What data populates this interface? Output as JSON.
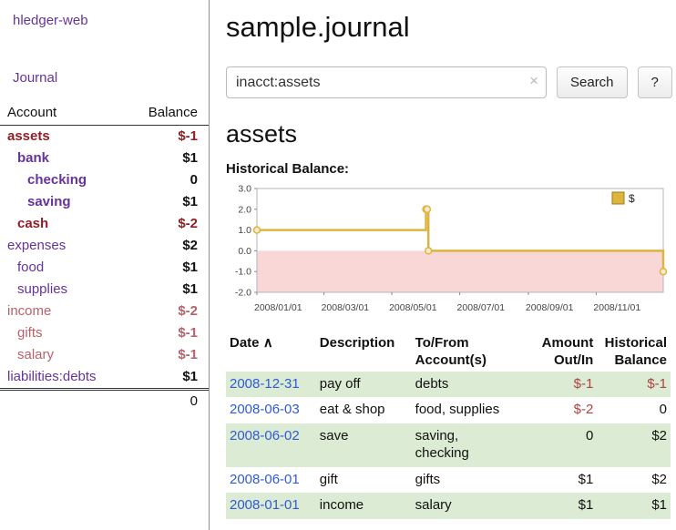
{
  "colors": {
    "purple": "#663399",
    "blue": "#2f5bd6",
    "neg-strong": "#8e1f26",
    "neg-soft": "#b5626b",
    "neg-table": "#a94442",
    "rowgreen": "#dcebd3",
    "gold": "#ddb440",
    "gold-dark": "#9a7d22",
    "marker-fill": "#f7ecc9",
    "pink": "#f9d7d7"
  },
  "sidebar": {
    "brand": "hledger-web",
    "nav_journal": "Journal",
    "col_account": "Account",
    "col_balance": "Balance",
    "accounts": [
      {
        "name": "assets",
        "depth": 0,
        "bold": true,
        "balance": "$-1"
      },
      {
        "name": "bank",
        "depth": 1,
        "bold": true,
        "balance": "$1"
      },
      {
        "name": "checking",
        "depth": 2,
        "bold": true,
        "balance": "0"
      },
      {
        "name": "saving",
        "depth": 2,
        "bold": true,
        "balance": "$1"
      },
      {
        "name": "cash",
        "depth": 1,
        "bold": true,
        "balance": "$-2"
      },
      {
        "name": "expenses",
        "depth": 0,
        "bold": false,
        "balance": "$2"
      },
      {
        "name": "food",
        "depth": 1,
        "bold": false,
        "balance": "$1"
      },
      {
        "name": "supplies",
        "depth": 1,
        "bold": false,
        "balance": "$1"
      },
      {
        "name": "income",
        "depth": 0,
        "bold": false,
        "balance": "$-2"
      },
      {
        "name": "gifts",
        "depth": 1,
        "bold": false,
        "balance": "$-1"
      },
      {
        "name": "salary",
        "depth": 1,
        "bold": false,
        "balance": "$-1"
      },
      {
        "name": "liabilities:debts",
        "depth": 0,
        "bold": false,
        "balance": "$1"
      }
    ],
    "total": "0"
  },
  "header": {
    "title": "sample.journal"
  },
  "search": {
    "value": "inacct:assets",
    "clear_icon": "×",
    "button": "Search",
    "help_button": "?"
  },
  "section": {
    "heading": "assets",
    "chart_label": "Historical Balance:"
  },
  "chart_data": {
    "type": "line",
    "step": true,
    "title": "Historical Balance",
    "legend": {
      "label": "$",
      "position": "top-right"
    },
    "grid": false,
    "ylim": [
      -2.0,
      3.0
    ],
    "yticks": [
      3.0,
      2.0,
      1.0,
      0.0,
      -1.0,
      -2.0
    ],
    "xticks": [
      {
        "pos": 0.0,
        "label": "2008/01/01"
      },
      {
        "pos": 0.165,
        "label": "2008/03/01"
      },
      {
        "pos": 0.332,
        "label": "2008/05/01"
      },
      {
        "pos": 0.499,
        "label": "2008/07/01"
      },
      {
        "pos": 0.668,
        "label": "2008/09/01"
      },
      {
        "pos": 0.835,
        "label": "2008/11/01"
      }
    ],
    "series": [
      {
        "name": "$",
        "points": [
          {
            "date": "2008-01-01",
            "x": 0.0,
            "y": 1.0
          },
          {
            "date": "2008-06-01",
            "x": 0.416,
            "y": 2.0
          },
          {
            "date": "2008-06-02",
            "x": 0.419,
            "y": 2.0
          },
          {
            "date": "2008-06-03",
            "x": 0.422,
            "y": 0.0
          },
          {
            "date": "2008-12-31",
            "x": 1.0,
            "y": -1.0
          }
        ]
      }
    ]
  },
  "journal": {
    "headers": {
      "date": "Date",
      "sort_icon": "∧",
      "description": "Description",
      "account_l1": "To/From",
      "account_l2": "Account(s)",
      "amount_l1": "Amount",
      "amount_l2": "Out/In",
      "balance_l1": "Historical",
      "balance_l2": "Balance"
    },
    "rows": [
      {
        "date": "2008-12-31",
        "description": "pay off",
        "accounts": "debts",
        "amount": "$-1",
        "balance": "$-1"
      },
      {
        "date": "2008-06-03",
        "description": "eat & shop",
        "accounts": "food, supplies",
        "amount": "$-2",
        "balance": "0"
      },
      {
        "date": "2008-06-02",
        "description": "save",
        "accounts": "saving, checking",
        "amount": "0",
        "balance": "$2"
      },
      {
        "date": "2008-06-01",
        "description": "gift",
        "accounts": "gifts",
        "amount": "$1",
        "balance": "$2"
      },
      {
        "date": "2008-01-01",
        "description": "income",
        "accounts": "salary",
        "amount": "$1",
        "balance": "$1"
      }
    ]
  }
}
